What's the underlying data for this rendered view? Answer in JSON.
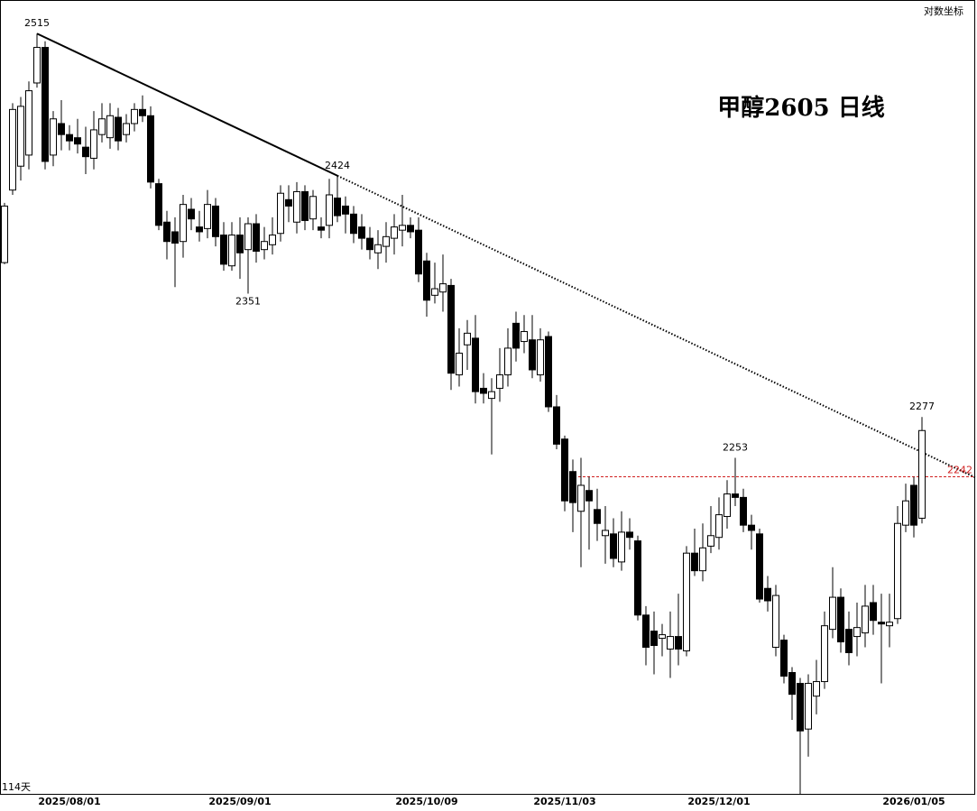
{
  "chart_data": {
    "type": "candlestick",
    "title": "甲醇2605 日线",
    "scale_label": "对数坐标",
    "period_label": "114天",
    "log_scale": true,
    "ylim": [
      2065,
      2537
    ],
    "up_color": "#ffffff",
    "down_color": "#000000",
    "categories": [
      null,
      null,
      null,
      null,
      null,
      null,
      null,
      null,
      "2025/08/01",
      null,
      null,
      null,
      null,
      null,
      null,
      null,
      null,
      null,
      null,
      null,
      null,
      null,
      null,
      null,
      null,
      null,
      null,
      null,
      null,
      "2025/09/01",
      null,
      null,
      null,
      null,
      null,
      null,
      null,
      null,
      null,
      null,
      null,
      null,
      null,
      null,
      null,
      null,
      null,
      null,
      null,
      null,
      null,
      null,
      "2025/10/09",
      null,
      null,
      null,
      null,
      null,
      null,
      null,
      null,
      null,
      null,
      null,
      null,
      null,
      null,
      null,
      null,
      "2025/11/03",
      null,
      null,
      null,
      null,
      null,
      null,
      null,
      null,
      null,
      null,
      null,
      null,
      null,
      null,
      null,
      null,
      null,
      null,
      "2025/12/01",
      null,
      null,
      null,
      null,
      null,
      null,
      null,
      null,
      null,
      null,
      null,
      null,
      null,
      null,
      null,
      null,
      null,
      null,
      null,
      null,
      null,
      null,
      null,
      "2026/01/05",
      null
    ],
    "candles": [
      [
        2370,
        2407,
        2369,
        2405
      ],
      [
        2415,
        2470,
        2412,
        2466
      ],
      [
        2430,
        2474,
        2421,
        2468
      ],
      [
        2437,
        2484,
        2428,
        2478
      ],
      [
        2483,
        2515,
        2480,
        2506
      ],
      [
        2506,
        2510,
        2428,
        2433
      ],
      [
        2437,
        2465,
        2430,
        2460
      ],
      [
        2457,
        2472,
        2440,
        2450
      ],
      [
        2450,
        2456,
        2440,
        2446
      ],
      [
        2448,
        2460,
        2438,
        2444
      ],
      [
        2442,
        2455,
        2425,
        2436
      ],
      [
        2435,
        2465,
        2428,
        2453
      ],
      [
        2450,
        2470,
        2445,
        2460
      ],
      [
        2448,
        2470,
        2441,
        2462
      ],
      [
        2461,
        2467,
        2440,
        2446
      ],
      [
        2450,
        2463,
        2445,
        2457
      ],
      [
        2457,
        2470,
        2452,
        2466
      ],
      [
        2466,
        2475,
        2458,
        2462
      ],
      [
        2462,
        2468,
        2416,
        2420
      ],
      [
        2419,
        2422,
        2390,
        2393
      ],
      [
        2395,
        2402,
        2372,
        2383
      ],
      [
        2389,
        2398,
        2355,
        2382
      ],
      [
        2383,
        2412,
        2373,
        2406
      ],
      [
        2403,
        2410,
        2390,
        2397
      ],
      [
        2392,
        2402,
        2383,
        2389
      ],
      [
        2391,
        2415,
        2385,
        2406
      ],
      [
        2405,
        2410,
        2380,
        2386
      ],
      [
        2387,
        2395,
        2365,
        2369
      ],
      [
        2368,
        2395,
        2365,
        2387
      ],
      [
        2387,
        2398,
        2360,
        2376
      ],
      [
        2378,
        2398,
        2351,
        2394
      ],
      [
        2394,
        2400,
        2370,
        2377
      ],
      [
        2378,
        2392,
        2372,
        2383
      ],
      [
        2381,
        2398,
        2375,
        2387
      ],
      [
        2388,
        2418,
        2383,
        2413
      ],
      [
        2409,
        2418,
        2395,
        2405
      ],
      [
        2395,
        2420,
        2388,
        2414
      ],
      [
        2414,
        2418,
        2390,
        2396
      ],
      [
        2397,
        2415,
        2390,
        2411
      ],
      [
        2392,
        2398,
        2385,
        2390
      ],
      [
        2393,
        2422,
        2385,
        2412
      ],
      [
        2410,
        2424,
        2395,
        2399
      ],
      [
        2405,
        2411,
        2388,
        2400
      ],
      [
        2400,
        2405,
        2382,
        2388
      ],
      [
        2392,
        2400,
        2378,
        2385
      ],
      [
        2385,
        2392,
        2372,
        2378
      ],
      [
        2376,
        2390,
        2366,
        2381
      ],
      [
        2380,
        2395,
        2370,
        2386
      ],
      [
        2385,
        2400,
        2375,
        2392
      ],
      [
        2390,
        2412,
        2380,
        2393
      ],
      [
        2393,
        2398,
        2385,
        2389
      ],
      [
        2390,
        2398,
        2358,
        2363
      ],
      [
        2371,
        2376,
        2337,
        2347
      ],
      [
        2350,
        2370,
        2345,
        2354
      ],
      [
        2352,
        2375,
        2340,
        2357
      ],
      [
        2356,
        2360,
        2293,
        2303
      ],
      [
        2302,
        2330,
        2295,
        2315
      ],
      [
        2320,
        2335,
        2305,
        2327
      ],
      [
        2324,
        2338,
        2285,
        2292
      ],
      [
        2294,
        2303,
        2285,
        2291
      ],
      [
        2288,
        2300,
        2255,
        2292
      ],
      [
        2294,
        2318,
        2286,
        2302
      ],
      [
        2302,
        2330,
        2295,
        2318
      ],
      [
        2333,
        2340,
        2310,
        2318
      ],
      [
        2322,
        2338,
        2315,
        2328
      ],
      [
        2323,
        2338,
        2300,
        2305
      ],
      [
        2302,
        2330,
        2298,
        2323
      ],
      [
        2325,
        2328,
        2280,
        2283
      ],
      [
        2283,
        2290,
        2258,
        2261
      ],
      [
        2264,
        2266,
        2222,
        2228
      ],
      [
        2245,
        2252,
        2210,
        2227
      ],
      [
        2222,
        2253,
        2190,
        2237
      ],
      [
        2234,
        2242,
        2200,
        2228
      ],
      [
        2223,
        2235,
        2205,
        2215
      ],
      [
        2208,
        2225,
        2192,
        2211
      ],
      [
        2209,
        2218,
        2190,
        2195
      ],
      [
        2193,
        2222,
        2188,
        2210
      ],
      [
        2210,
        2218,
        2200,
        2207
      ],
      [
        2205,
        2208,
        2160,
        2163
      ],
      [
        2163,
        2168,
        2135,
        2145
      ],
      [
        2154,
        2165,
        2130,
        2146
      ],
      [
        2150,
        2158,
        2140,
        2152
      ],
      [
        2144,
        2165,
        2128,
        2151
      ],
      [
        2151,
        2175,
        2135,
        2144
      ],
      [
        2143,
        2202,
        2140,
        2198
      ],
      [
        2198,
        2212,
        2185,
        2188
      ],
      [
        2188,
        2215,
        2182,
        2201
      ],
      [
        2202,
        2225,
        2198,
        2208
      ],
      [
        2207,
        2230,
        2200,
        2220
      ],
      [
        2219,
        2240,
        2212,
        2232
      ],
      [
        2232,
        2253,
        2225,
        2230
      ],
      [
        2230,
        2235,
        2210,
        2214
      ],
      [
        2214,
        2220,
        2200,
        2211
      ],
      [
        2209,
        2212,
        2170,
        2172
      ],
      [
        2178,
        2185,
        2165,
        2171
      ],
      [
        2145,
        2180,
        2140,
        2174
      ],
      [
        2149,
        2152,
        2125,
        2129
      ],
      [
        2131,
        2134,
        2105,
        2119
      ],
      [
        2125,
        2128,
        2065,
        2099
      ],
      [
        2100,
        2130,
        2085,
        2125
      ],
      [
        2118,
        2138,
        2108,
        2126
      ],
      [
        2126,
        2165,
        2122,
        2157
      ],
      [
        2155,
        2190,
        2150,
        2173
      ],
      [
        2173,
        2178,
        2142,
        2148
      ],
      [
        2155,
        2165,
        2135,
        2142
      ],
      [
        2151,
        2170,
        2140,
        2156
      ],
      [
        2153,
        2180,
        2145,
        2168
      ],
      [
        2170,
        2180,
        2152,
        2160
      ],
      [
        2159,
        2175,
        2125,
        2158
      ],
      [
        2157,
        2175,
        2145,
        2159
      ],
      [
        2161,
        2225,
        2158,
        2215
      ],
      [
        2214,
        2238,
        2210,
        2228
      ],
      [
        2237,
        2242,
        2207,
        2214
      ],
      [
        2218,
        2277,
        2215,
        2269
      ]
    ],
    "annotations": [
      {
        "index": 4,
        "value": 2515,
        "position": "above"
      },
      {
        "index": 41,
        "value": 2424,
        "position": "above"
      },
      {
        "index": 30,
        "value": 2351,
        "position": "below"
      },
      {
        "index": 90,
        "value": 2253,
        "position": "above"
      },
      {
        "index": 113,
        "value": 2277,
        "position": "above"
      }
    ],
    "trendline": {
      "start": {
        "index": 4,
        "value": 2515
      },
      "end": {
        "index": 41,
        "value": 2424
      },
      "color": "#000000"
    },
    "level_line": {
      "start_index": 69,
      "value": 2242,
      "color": "#d02020"
    }
  }
}
